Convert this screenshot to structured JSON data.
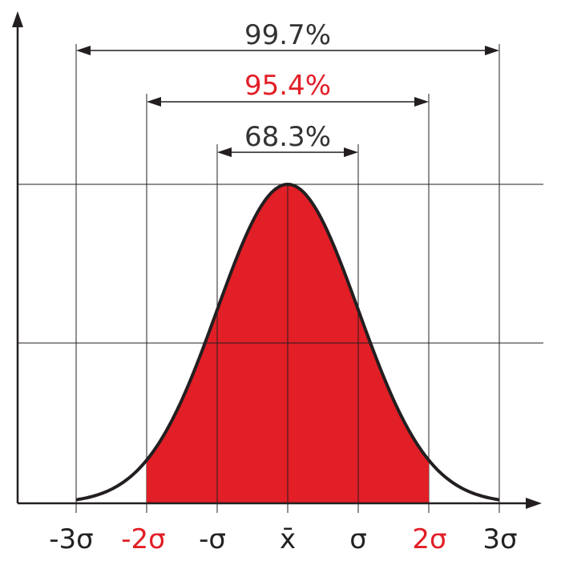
{
  "diagram": {
    "subject": "normal distribution with standard deviation ranges",
    "curve_fill_color": "#e21e26",
    "curve_stroke_color": "#231f20",
    "accent_color": "#e21e26",
    "text_color": "#333333",
    "ranges": [
      {
        "label": "99.7%",
        "from": "-3σ",
        "to": "3σ",
        "color": "#333333"
      },
      {
        "label": "95.4%",
        "from": "-2σ",
        "to": "2σ",
        "color": "#e21e26"
      },
      {
        "label": "68.3%",
        "from": "-σ",
        "to": "σ",
        "color": "#333333"
      }
    ],
    "x_ticks": [
      {
        "label": "-3σ",
        "color": "#222222"
      },
      {
        "label": "-2σ",
        "color": "#e21e26"
      },
      {
        "label": "-σ",
        "color": "#222222"
      },
      {
        "label": "x̄",
        "color": "#222222"
      },
      {
        "label": "σ",
        "color": "#222222"
      },
      {
        "label": "2σ",
        "color": "#e21e26"
      },
      {
        "label": "3σ",
        "color": "#222222"
      }
    ],
    "shaded_range": "-2σ to 2σ"
  }
}
